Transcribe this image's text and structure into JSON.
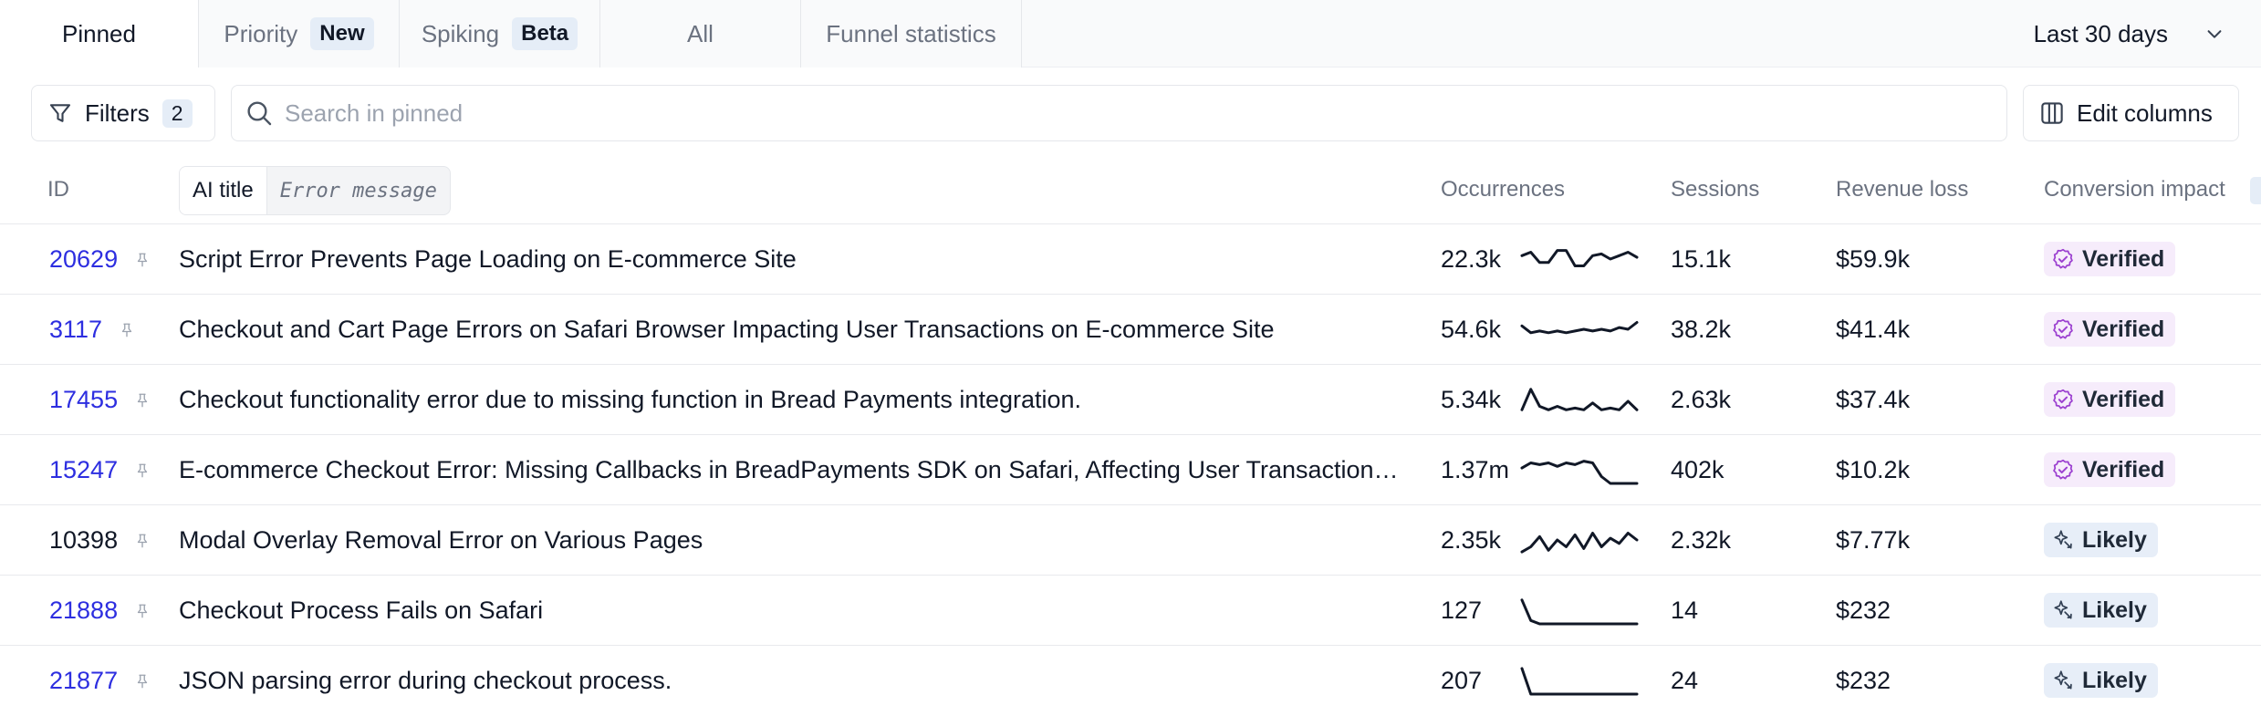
{
  "tabs": [
    {
      "label": "Pinned",
      "badge": ""
    },
    {
      "label": "Priority",
      "badge": "New"
    },
    {
      "label": "Spiking",
      "badge": "Beta"
    },
    {
      "label": "All",
      "badge": ""
    },
    {
      "label": "Funnel statistics",
      "badge": ""
    }
  ],
  "date_range": {
    "label": "Last 30 days",
    "icon": "chevron-down-icon"
  },
  "toolbar": {
    "filters_label": "Filters",
    "filters_count": "2",
    "search_placeholder": "Search in pinned",
    "search_value": "",
    "edit_columns_label": "Edit columns"
  },
  "columns": {
    "id": "ID",
    "title_toggle": {
      "ai_title": "AI title",
      "error_message": "Error message"
    },
    "occurrences": "Occurrences",
    "sessions": "Sessions",
    "revenue_loss": "Revenue loss",
    "conversion_impact": "Conversion impact"
  },
  "rows": [
    {
      "id": "20629",
      "id_link": true,
      "title": "Script Error Prevents Page Loading on E-commerce Site",
      "occurrences": "22.3k",
      "sessions": "15.1k",
      "revenue_loss": "$59.9k",
      "impact": "Verified",
      "sparkline": [
        6,
        4,
        10,
        10,
        3,
        3,
        12,
        12,
        6,
        5,
        8,
        6,
        4,
        7
      ]
    },
    {
      "id": "3117",
      "id_link": true,
      "title": "Checkout and Cart Page Errors on Safari Browser Impacting User Transactions on E-commerce Site",
      "occurrences": "54.6k",
      "sessions": "38.2k",
      "revenue_loss": "$41.4k",
      "impact": "Verified",
      "sparkline": [
        6,
        10,
        9,
        10,
        9,
        10,
        9,
        8,
        9,
        8,
        9,
        7,
        8,
        4
      ]
    },
    {
      "id": "17455",
      "id_link": true,
      "title": "Checkout functionality error due to missing function in Bread Payments integration.",
      "occurrences": "5.34k",
      "sessions": "2.63k",
      "revenue_loss": "$37.4k",
      "impact": "Verified",
      "sparkline": [
        14,
        2,
        12,
        14,
        12,
        14,
        13,
        14,
        10,
        14,
        13,
        14,
        9,
        14
      ]
    },
    {
      "id": "15247",
      "id_link": true,
      "title": "E-commerce Checkout Error: Missing Callbacks in BreadPayments SDK on Safari, Affecting User Transactions on Website",
      "occurrences": "1.37m",
      "sessions": "402k",
      "revenue_loss": "$10.2k",
      "impact": "Verified",
      "sparkline": [
        7,
        4,
        5,
        4,
        6,
        4,
        5,
        3,
        4,
        12,
        16,
        16,
        16,
        16
      ]
    },
    {
      "id": "10398",
      "id_link": false,
      "title": "Modal Overlay Removal Error on Various Pages",
      "occurrences": "2.35k",
      "sessions": "2.32k",
      "revenue_loss": "$7.77k",
      "impact": "Likely",
      "sparkline": [
        15,
        12,
        6,
        14,
        8,
        12,
        5,
        13,
        4,
        12,
        7,
        10,
        4,
        8
      ]
    },
    {
      "id": "21888",
      "id_link": true,
      "title": "Checkout Process Fails on Safari",
      "occurrences": "127",
      "sessions": "14",
      "revenue_loss": "$232",
      "impact": "Likely",
      "sparkline": [
        2,
        14,
        16,
        16,
        16,
        16,
        16,
        16,
        16,
        16,
        16,
        16,
        16,
        16
      ]
    },
    {
      "id": "21877",
      "id_link": true,
      "title": "JSON parsing error during checkout process.",
      "occurrences": "207",
      "sessions": "24",
      "revenue_loss": "$232",
      "impact": "Likely",
      "sparkline": [
        1,
        16,
        16,
        16,
        16,
        16,
        16,
        16,
        16,
        16,
        16,
        16,
        16,
        16
      ]
    }
  ],
  "colors": {
    "link": "#2d2ee0",
    "verified_bg": "#f6ecfb",
    "verified_icon": "#9b3fd0",
    "likely_bg": "#e7eef8",
    "likely_icon": "#334155"
  }
}
